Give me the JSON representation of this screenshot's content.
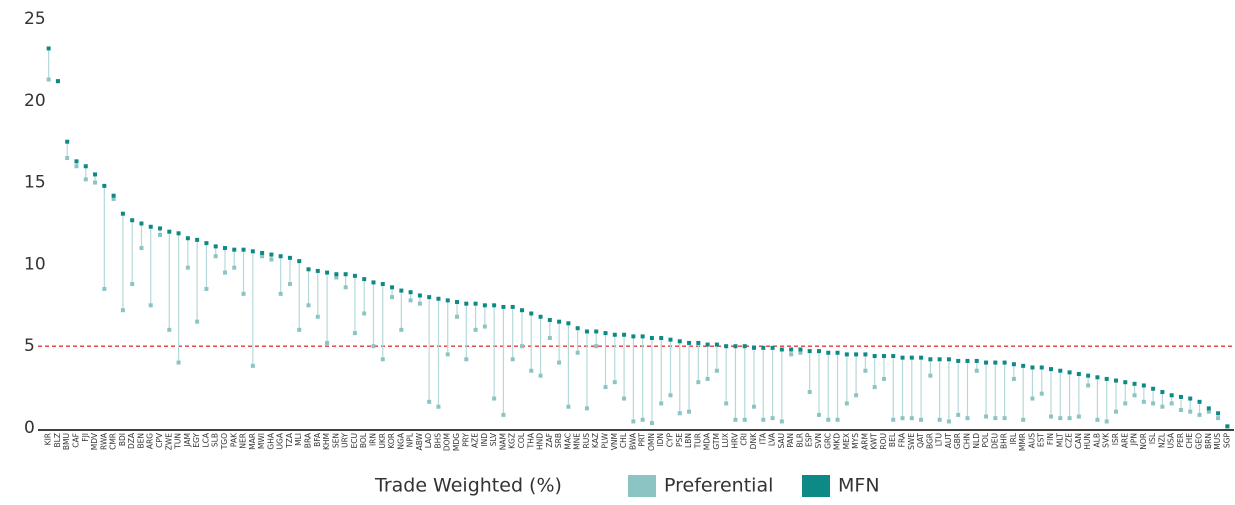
{
  "chart_data": {
    "type": "dot-range",
    "legend_title": "Trade Weighted (%)",
    "categories": [
      "KIR",
      "BLZ",
      "BMU",
      "CAF",
      "FJI",
      "MDV",
      "RWA",
      "CMR",
      "BDI",
      "DZA",
      "BEN",
      "ARG",
      "CPV",
      "ZWE",
      "TUN",
      "JAM",
      "EGY",
      "LCA",
      "SLB",
      "TGO",
      "PAK",
      "NER",
      "MAR",
      "MWI",
      "GHA",
      "UGA",
      "TZA",
      "MLI",
      "BRA",
      "BFA",
      "KHM",
      "SEN",
      "URY",
      "ECU",
      "BOL",
      "IRN",
      "UKR",
      "KOR",
      "NGA",
      "NPL",
      "ABW",
      "LAO",
      "BHS",
      "DOM",
      "MDG",
      "PRY",
      "AZE",
      "IND",
      "SLV",
      "NAM",
      "KGZ",
      "COL",
      "THA",
      "HND",
      "ZAF",
      "SRB",
      "MAC",
      "MNE",
      "RUS",
      "KAZ",
      "PLW",
      "VNM",
      "CHL",
      "BWA",
      "PRT",
      "OMN",
      "IDN",
      "CYP",
      "PSE",
      "LBN",
      "TUR",
      "MDA",
      "GTM",
      "LUX",
      "HRV",
      "CRI",
      "DNK",
      "ITA",
      "LVA",
      "SAU",
      "PAN",
      "BLR",
      "ESP",
      "SVN",
      "GRC",
      "MKD",
      "MEX",
      "MYS",
      "ARM",
      "KWT",
      "ROU",
      "BEL",
      "FRA",
      "SWE",
      "QAT",
      "BGR",
      "LTU",
      "AUT",
      "GBR",
      "CHN",
      "NLD",
      "POL",
      "DEU",
      "BHR",
      "IRL",
      "MMR",
      "AUS",
      "EST",
      "FIN",
      "MLT",
      "CZE",
      "CAN",
      "HUN",
      "ALB",
      "SVK",
      "ISR",
      "ARE",
      "JPN",
      "NOR",
      "ISL",
      "NZL",
      "USA",
      "PER",
      "CHE",
      "GEO",
      "BRN",
      "MUS",
      "SGP"
    ],
    "series": [
      {
        "name": "Preferential",
        "color": "#8cc4c4",
        "values": [
          21.3,
          21.2,
          16.5,
          16.0,
          15.2,
          15.0,
          8.5,
          14.0,
          7.2,
          8.8,
          11.0,
          7.5,
          11.8,
          6.0,
          4.0,
          9.8,
          6.5,
          8.5,
          10.5,
          9.5,
          9.8,
          8.2,
          3.8,
          10.5,
          10.3,
          8.2,
          8.8,
          6.0,
          7.5,
          6.8,
          5.2,
          9.2,
          8.6,
          5.8,
          7.0,
          5.0,
          4.2,
          8.0,
          6.0,
          7.8,
          7.6,
          1.6,
          1.3,
          4.5,
          6.8,
          4.2,
          6.0,
          6.2,
          1.8,
          0.8,
          4.2,
          5.0,
          3.5,
          3.2,
          5.5,
          4.0,
          1.3,
          4.6,
          1.2,
          5.0,
          2.5,
          2.8,
          1.8,
          0.4,
          0.5,
          0.3,
          1.5,
          2.0,
          0.9,
          1.0,
          2.8,
          3.0,
          3.5,
          1.5,
          0.5,
          0.5,
          1.3,
          0.5,
          0.6,
          0.4,
          4.5,
          4.6,
          2.2,
          0.8,
          0.5,
          0.5,
          1.5,
          2.0,
          3.5,
          2.5,
          3.0,
          0.5,
          0.6,
          0.6,
          0.5,
          3.2,
          0.5,
          0.4,
          0.8,
          0.6,
          3.5,
          0.7,
          0.6,
          0.6,
          3.0,
          0.5,
          1.8,
          2.1,
          0.7,
          0.6,
          0.6,
          0.7,
          2.6,
          0.5,
          0.4,
          1.0,
          1.5,
          2.0,
          1.6,
          1.5,
          1.3,
          1.5,
          1.1,
          1.0,
          0.8,
          1.0,
          0.6,
          0.1
        ]
      },
      {
        "name": "MFN",
        "color": "#0e8a86",
        "values": [
          23.2,
          21.2,
          17.5,
          16.3,
          16.0,
          15.5,
          14.8,
          14.2,
          13.1,
          12.7,
          12.5,
          12.3,
          12.2,
          12.0,
          11.9,
          11.6,
          11.5,
          11.3,
          11.1,
          11.0,
          10.9,
          10.9,
          10.8,
          10.7,
          10.6,
          10.5,
          10.4,
          10.2,
          9.7,
          9.6,
          9.5,
          9.4,
          9.4,
          9.3,
          9.1,
          8.9,
          8.8,
          8.6,
          8.4,
          8.3,
          8.1,
          8.0,
          7.9,
          7.8,
          7.7,
          7.6,
          7.6,
          7.5,
          7.5,
          7.4,
          7.4,
          7.2,
          7.0,
          6.8,
          6.6,
          6.5,
          6.4,
          6.1,
          5.9,
          5.9,
          5.8,
          5.7,
          5.7,
          5.6,
          5.6,
          5.5,
          5.5,
          5.4,
          5.3,
          5.2,
          5.2,
          5.1,
          5.1,
          5.0,
          5.0,
          5.0,
          4.9,
          4.9,
          4.9,
          4.8,
          4.8,
          4.8,
          4.7,
          4.7,
          4.6,
          4.6,
          4.5,
          4.5,
          4.5,
          4.4,
          4.4,
          4.4,
          4.3,
          4.3,
          4.3,
          4.2,
          4.2,
          4.2,
          4.1,
          4.1,
          4.1,
          4.0,
          4.0,
          4.0,
          3.9,
          3.8,
          3.7,
          3.7,
          3.6,
          3.5,
          3.4,
          3.3,
          3.2,
          3.1,
          3.0,
          2.9,
          2.8,
          2.7,
          2.6,
          2.4,
          2.2,
          2.0,
          1.9,
          1.8,
          1.6,
          1.2,
          0.9,
          0.1
        ]
      }
    ],
    "ylim": [
      0,
      25
    ],
    "yticks": [
      0,
      5,
      10,
      15,
      20,
      25
    ],
    "threshold": 5,
    "threshold_color": "#e0393e",
    "grid": false
  }
}
